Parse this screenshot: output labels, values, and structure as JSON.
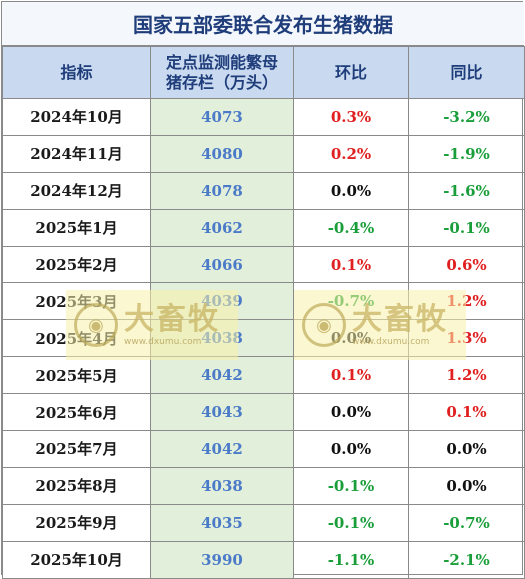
{
  "title": "国家五部委联合发布生猪数据",
  "headers": [
    "指标",
    "定点监测能繁母猪存栏（万头）",
    "环比",
    "同比"
  ],
  "rows": [
    {
      "month": "2024年10月",
      "stock": "4073",
      "mom": "0.3%",
      "mom_color": "red",
      "yoy": "-3.2%",
      "yoy_color": "green"
    },
    {
      "month": "2024年11月",
      "stock": "4080",
      "mom": "0.2%",
      "mom_color": "red",
      "yoy": "-1.9%",
      "yoy_color": "green"
    },
    {
      "month": "2024年12月",
      "stock": "4078",
      "mom": "0.0%",
      "mom_color": "black",
      "yoy": "-1.6%",
      "yoy_color": "green"
    },
    {
      "month": "2025年1月",
      "stock": "4062",
      "mom": "-0.4%",
      "mom_color": "green",
      "yoy": "-0.1%",
      "yoy_color": "green"
    },
    {
      "month": "2025年2月",
      "stock": "4066",
      "mom": "0.1%",
      "mom_color": "red",
      "yoy": "0.6%",
      "yoy_color": "red"
    },
    {
      "month": "2025年3月",
      "stock": "4039",
      "mom": "-0.7%",
      "mom_color": "green",
      "yoy": "1.2%",
      "yoy_color": "red"
    },
    {
      "month": "2025年4月",
      "stock": "4038",
      "mom": "0.0%",
      "mom_color": "black",
      "yoy": "1.3%",
      "yoy_color": "red"
    },
    {
      "month": "2025年5月",
      "stock": "4042",
      "mom": "0.1%",
      "mom_color": "red",
      "yoy": "1.2%",
      "yoy_color": "red"
    },
    {
      "month": "2025年6月",
      "stock": "4043",
      "mom": "0.0%",
      "mom_color": "black",
      "yoy": "0.1%",
      "yoy_color": "red"
    },
    {
      "month": "2025年7月",
      "stock": "4042",
      "mom": "0.0%",
      "mom_color": "black",
      "yoy": "0.0%",
      "yoy_color": "black"
    },
    {
      "month": "2025年8月",
      "stock": "4038",
      "mom": "-0.1%",
      "mom_color": "green",
      "yoy": "0.0%",
      "yoy_color": "black"
    },
    {
      "month": "2025年9月",
      "stock": "4035",
      "mom": "-0.1%",
      "mom_color": "green",
      "yoy": "-0.7%",
      "yoy_color": "green"
    },
    {
      "month": "2025年10月",
      "stock": "3990",
      "mom": "-1.1%",
      "mom_color": "green",
      "yoy": "-2.1%",
      "yoy_color": "green"
    }
  ],
  "watermark": {
    "brand": "大畜牧",
    "site": "www.dxumu.com"
  },
  "colors": {
    "red": "#e02020",
    "green": "#1a9e3a",
    "black": "#111111",
    "header_bg": "#c9daf0",
    "stock_bg": "#e2efda"
  }
}
